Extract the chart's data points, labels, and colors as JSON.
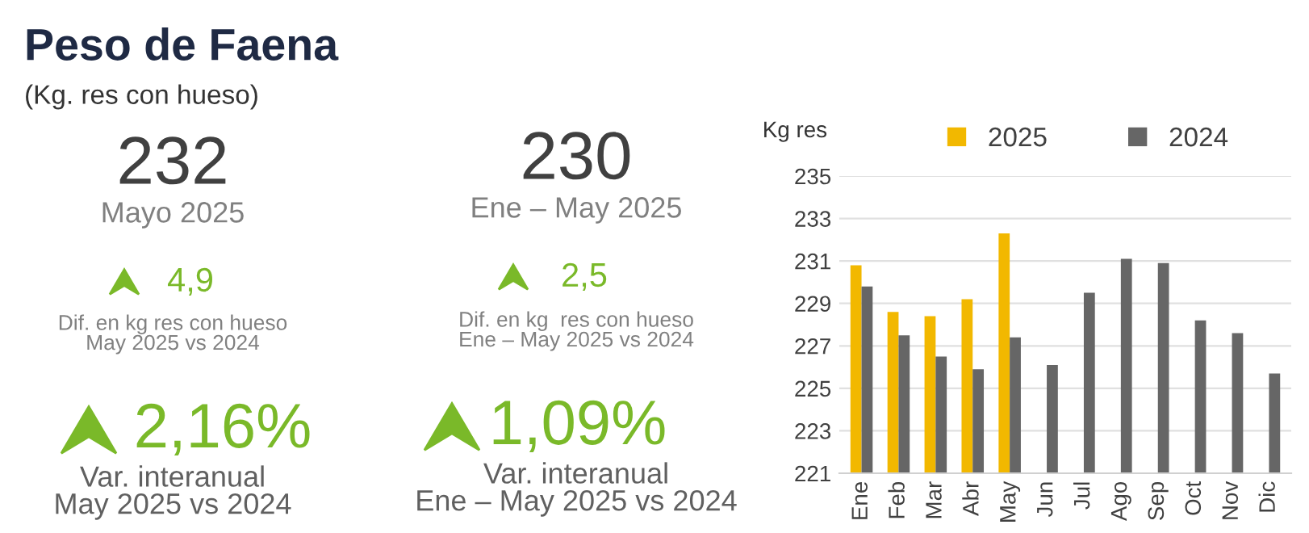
{
  "chart_data": [
    {
      "type": "other",
      "title": "Peso de Faena",
      "subtitle": "(Kg. res con hueso)",
      "annotations": [
        "232",
        "Mayo 2025",
        "4,9",
        "Dif. en kg res con hueso\nMay 2025 vs 2024",
        "230",
        "Ene – May 2025",
        "2,5",
        "Dif. en kg  res con hueso\nEne – May 2025 vs 2024",
        "2,16%",
        "Var. interanual\nMay 2025 vs 2024",
        "1,09%",
        "Var. interanual\nEne – May 2025 vs 2024"
      ]
    },
    {
      "type": "bar",
      "ylabel": "Kg res",
      "categories": [
        "Ene",
        "Feb",
        "Mar",
        "Abr",
        "May",
        "Jun",
        "Jul",
        "Ago",
        "Sep",
        "Oct",
        "Nov",
        "Dic"
      ],
      "series": [
        {
          "name": "2025",
          "color": "#f2b800",
          "values": [
            230.8,
            228.6,
            228.4,
            229.2,
            232.3,
            null,
            null,
            null,
            null,
            null,
            null,
            null
          ]
        },
        {
          "name": "2024",
          "color": "#666666",
          "values": [
            229.8,
            227.5,
            226.5,
            225.9,
            227.4,
            226.1,
            229.5,
            231.1,
            230.9,
            228.2,
            227.6,
            225.7
          ]
        }
      ],
      "ylim": [
        221,
        235
      ],
      "yticks": [
        221,
        223,
        225,
        227,
        229,
        231,
        233,
        235
      ],
      "grid": "y",
      "legend": "top"
    }
  ]
}
